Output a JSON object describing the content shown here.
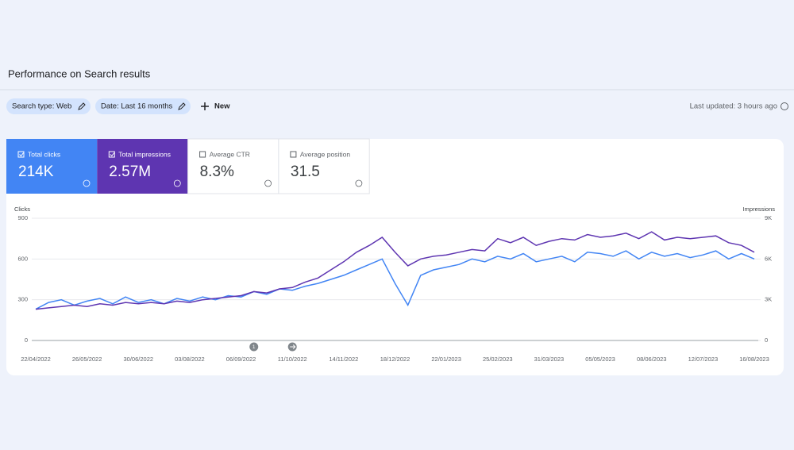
{
  "header": {
    "title": "Performance on Search results",
    "last_updated": "Last updated: 3 hours ago"
  },
  "filters": [
    {
      "label": "Search type: Web"
    },
    {
      "label": "Date: Last 16 months"
    }
  ],
  "new_button": "New",
  "metrics": [
    {
      "label": "Total clicks",
      "value": "214K",
      "selected": true,
      "color": "#4285f4"
    },
    {
      "label": "Total impressions",
      "value": "2.57M",
      "selected": true,
      "color": "#5e35b1"
    },
    {
      "label": "Average CTR",
      "value": "8.3%",
      "selected": false
    },
    {
      "label": "Average position",
      "value": "31.5",
      "selected": false
    }
  ],
  "chart_data": {
    "type": "line",
    "ylabel": "Clicks",
    "y2label": "Impressions",
    "categories": [
      "22/04/2022",
      null,
      null,
      null,
      "26/05/2022",
      null,
      null,
      null,
      "30/06/2022",
      null,
      null,
      null,
      "03/08/2022",
      null,
      null,
      null,
      "06/09/2022",
      null,
      null,
      null,
      "11/10/2022",
      null,
      null,
      null,
      "14/11/2022",
      null,
      null,
      null,
      "18/12/2022",
      null,
      null,
      null,
      "22/01/2023",
      null,
      null,
      null,
      "25/02/2023",
      null,
      null,
      null,
      "31/03/2023",
      null,
      null,
      null,
      "05/05/2023",
      null,
      null,
      null,
      "08/06/2023",
      null,
      null,
      null,
      "12/07/2023",
      null,
      null,
      null,
      "16/08/2023"
    ],
    "series": [
      {
        "name": "Clicks",
        "color": "#4285f4",
        "values": [
          230,
          280,
          300,
          260,
          290,
          310,
          270,
          320,
          280,
          300,
          270,
          310,
          290,
          320,
          300,
          330,
          320,
          360,
          340,
          380,
          370,
          400,
          420,
          450,
          480,
          520,
          560,
          600,
          420,
          260,
          480,
          520,
          540,
          560,
          600,
          580,
          620,
          600,
          640,
          580,
          600,
          620,
          580,
          650,
          640,
          620,
          660,
          600,
          650,
          620,
          640,
          610,
          630,
          660,
          600,
          640,
          600
        ]
      },
      {
        "name": "Impressions",
        "color": "#5e35b1",
        "axis": "y2",
        "values": [
          2300,
          2400,
          2500,
          2600,
          2500,
          2700,
          2600,
          2800,
          2700,
          2800,
          2700,
          2900,
          2800,
          3000,
          3100,
          3200,
          3300,
          3600,
          3500,
          3800,
          3900,
          4300,
          4600,
          5200,
          5800,
          6500,
          7000,
          7600,
          6500,
          5500,
          6000,
          6200,
          6300,
          6500,
          6700,
          6600,
          7500,
          7200,
          7600,
          7000,
          7300,
          7500,
          7400,
          7800,
          7600,
          7700,
          7900,
          7500,
          8000,
          7400,
          7600,
          7500,
          7600,
          7700,
          7200,
          7000,
          6500
        ]
      }
    ],
    "ylim": [
      0,
      900
    ],
    "yticks": [
      0,
      300,
      600,
      900
    ],
    "y2lim": [
      0,
      9000
    ],
    "y2ticks": [
      0,
      {
        "value": 3000,
        "label": "3K"
      },
      {
        "value": 6000,
        "label": "6K"
      },
      {
        "value": 9000,
        "label": "9K"
      }
    ],
    "grid": true,
    "annotations": [
      {
        "index": 17,
        "label": "1"
      },
      {
        "index": 20
      }
    ]
  }
}
